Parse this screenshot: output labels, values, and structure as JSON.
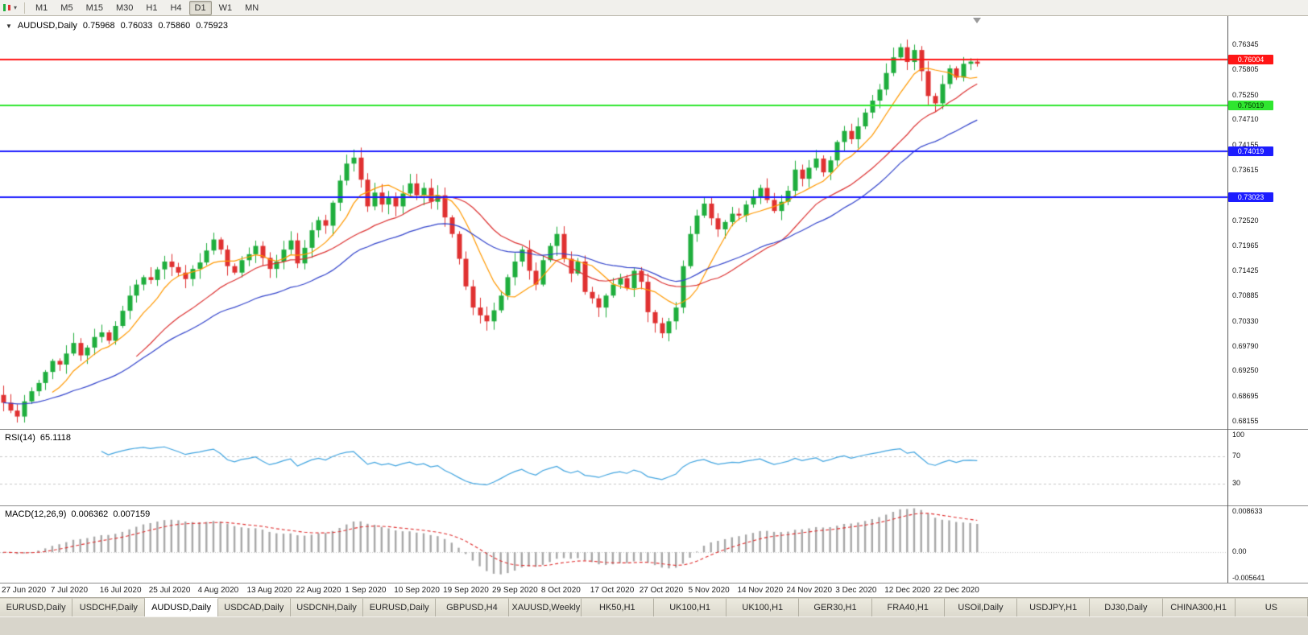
{
  "toolbar": {
    "timeframes": [
      "M1",
      "M5",
      "M15",
      "M30",
      "H1",
      "H4",
      "D1",
      "W1",
      "MN"
    ],
    "active_timeframe": "D1"
  },
  "main_chart": {
    "symbol": "AUDUSD,Daily",
    "open": "0.75968",
    "high": "0.76033",
    "low": "0.75860",
    "close": "0.75923",
    "price_axis_labels": [
      "0.76345",
      "0.75805",
      "0.75250",
      "0.74710",
      "0.74155",
      "0.73615",
      "0.73060",
      "0.72520",
      "0.71965",
      "0.71425",
      "0.70885",
      "0.70330",
      "0.69790",
      "0.69250",
      "0.68695",
      "0.68155"
    ],
    "hlines": [
      {
        "value": 0.76004,
        "label": "0.76004",
        "color": "#ff1515",
        "text_color": "#ffffff"
      },
      {
        "value": 0.75019,
        "label": "0.75019",
        "color": "#2fe62f",
        "text_color": "#003300"
      },
      {
        "value": 0.74019,
        "label": "0.74019",
        "color": "#1c1cff",
        "text_color": "#ffffff"
      },
      {
        "value": 0.73023,
        "label": "0.73023",
        "color": "#1c1cff",
        "text_color": "#ffffff"
      }
    ],
    "colors": {
      "candle_up": "#1fae3d",
      "candle_down": "#e03131",
      "ma_fast": "#ff9900",
      "ma_mid": "#dd3333",
      "ma_slow": "#3344cc"
    }
  },
  "chart_data": {
    "type": "candlestick",
    "symbol": "AUDUSD",
    "period": "Daily",
    "first_open": 0.6872,
    "closes": [
      0.6855,
      0.6838,
      0.6825,
      0.6858,
      0.688,
      0.6898,
      0.6922,
      0.6946,
      0.6938,
      0.6962,
      0.6985,
      0.6958,
      0.6975,
      0.6998,
      0.7008,
      0.699,
      0.7022,
      0.7055,
      0.7088,
      0.7112,
      0.7128,
      0.7122,
      0.7145,
      0.7162,
      0.715,
      0.7138,
      0.7124,
      0.7146,
      0.716,
      0.7186,
      0.721,
      0.7188,
      0.7152,
      0.7138,
      0.7165,
      0.7178,
      0.7196,
      0.717,
      0.7146,
      0.7162,
      0.7188,
      0.7208,
      0.7158,
      0.7192,
      0.723,
      0.7252,
      0.724,
      0.729,
      0.7338,
      0.7375,
      0.7388,
      0.734,
      0.7282,
      0.7312,
      0.7286,
      0.7302,
      0.7282,
      0.731,
      0.7332,
      0.7306,
      0.7322,
      0.7292,
      0.7306,
      0.7258,
      0.7222,
      0.7168,
      0.7108,
      0.7062,
      0.7045,
      0.7032,
      0.7056,
      0.7088,
      0.7128,
      0.7162,
      0.7188,
      0.7142,
      0.7112,
      0.7165,
      0.7196,
      0.7222,
      0.7168,
      0.7136,
      0.7162,
      0.7096,
      0.7082,
      0.7062,
      0.7088,
      0.7112,
      0.7126,
      0.7104,
      0.7142,
      0.7118,
      0.7052,
      0.7028,
      0.7006,
      0.7032,
      0.7062,
      0.7152,
      0.7222,
      0.7262,
      0.7288,
      0.7256,
      0.7232,
      0.7248,
      0.7266,
      0.7262,
      0.7286,
      0.7302,
      0.7322,
      0.7296,
      0.7272,
      0.7292,
      0.7316,
      0.7362,
      0.7342,
      0.7366,
      0.7386,
      0.7356,
      0.7382,
      0.7422,
      0.7446,
      0.7428,
      0.7456,
      0.7486,
      0.7512,
      0.7536,
      0.7572,
      0.7606,
      0.7628,
      0.7596,
      0.7622,
      0.7576,
      0.7522,
      0.7506,
      0.7548,
      0.7582,
      0.7562,
      0.7592,
      0.75968,
      0.75923
    ],
    "last_bar": {
      "open": 0.75968,
      "high": 0.76033,
      "low": 0.7586,
      "close": 0.75923
    },
    "date_labels": [
      {
        "text": "27 Jun 2020",
        "bar": 0
      },
      {
        "text": "7 Jul 2020",
        "bar": 7
      },
      {
        "text": "16 Jul 2020",
        "bar": 14
      },
      {
        "text": "25 Jul 2020",
        "bar": 21
      },
      {
        "text": "4 Aug 2020",
        "bar": 28
      },
      {
        "text": "13 Aug 2020",
        "bar": 35
      },
      {
        "text": "22 Aug 2020",
        "bar": 42
      },
      {
        "text": "1 Sep 2020",
        "bar": 49
      },
      {
        "text": "10 Sep 2020",
        "bar": 56
      },
      {
        "text": "19 Sep 2020",
        "bar": 63
      },
      {
        "text": "29 Sep 2020",
        "bar": 70
      },
      {
        "text": "8 Oct 2020",
        "bar": 77
      },
      {
        "text": "17 Oct 2020",
        "bar": 84
      },
      {
        "text": "27 Oct 2020",
        "bar": 91
      },
      {
        "text": "5 Nov 2020",
        "bar": 98
      },
      {
        "text": "14 Nov 2020",
        "bar": 105
      },
      {
        "text": "24 Nov 2020",
        "bar": 112
      },
      {
        "text": "3 Dec 2020",
        "bar": 119
      },
      {
        "text": "12 Dec 2020",
        "bar": 126
      },
      {
        "text": "22 Dec 2020",
        "bar": 133
      }
    ],
    "moving_averages": [
      {
        "name": "fast",
        "type": "sma",
        "period": 8,
        "color": "#ff9900"
      },
      {
        "name": "mid",
        "type": "sma",
        "period": 20,
        "color": "#dd3333"
      },
      {
        "name": "slow",
        "type": "ema",
        "period": 34,
        "color": "#3344cc"
      }
    ]
  },
  "rsi": {
    "label": "RSI(14)",
    "value": "65.1118",
    "period": 14,
    "axis_labels": [
      "100",
      "70",
      "30"
    ],
    "axis_values": [
      100,
      70,
      30
    ],
    "dashed_levels": [
      70,
      30
    ],
    "color": "#42a5e0"
  },
  "macd": {
    "label": "MACD(12,26,9)",
    "main": "0.006362",
    "signal": "0.007159",
    "fast": 12,
    "slow": 26,
    "signal_period": 9,
    "axis_labels": [
      "0.008633",
      "0.00",
      "-0.005641"
    ],
    "axis_values": [
      0.008633,
      0,
      -0.005641
    ],
    "hist_color": "#a8a8a8",
    "signal_color": "#e03030"
  },
  "tabs": [
    {
      "label": "EURUSD,Daily",
      "active": false
    },
    {
      "label": "USDCHF,Daily",
      "active": false
    },
    {
      "label": "AUDUSD,Daily",
      "active": true
    },
    {
      "label": "USDCAD,Daily",
      "active": false
    },
    {
      "label": "USDCNH,Daily",
      "active": false
    },
    {
      "label": "EURUSD,Daily",
      "active": false
    },
    {
      "label": "GBPUSD,H4",
      "active": false
    },
    {
      "label": "XAUUSD,Weekly",
      "active": false
    },
    {
      "label": "HK50,H1",
      "active": false
    },
    {
      "label": "UK100,H1",
      "active": false
    },
    {
      "label": "UK100,H1",
      "active": false
    },
    {
      "label": "GER30,H1",
      "active": false
    },
    {
      "label": "FRA40,H1",
      "active": false
    },
    {
      "label": "USOil,Daily",
      "active": false
    },
    {
      "label": "USDJPY,H1",
      "active": false
    },
    {
      "label": "DJ30,Daily",
      "active": false
    },
    {
      "label": "CHINA300,H1",
      "active": false
    },
    {
      "label": "US",
      "active": false
    }
  ]
}
